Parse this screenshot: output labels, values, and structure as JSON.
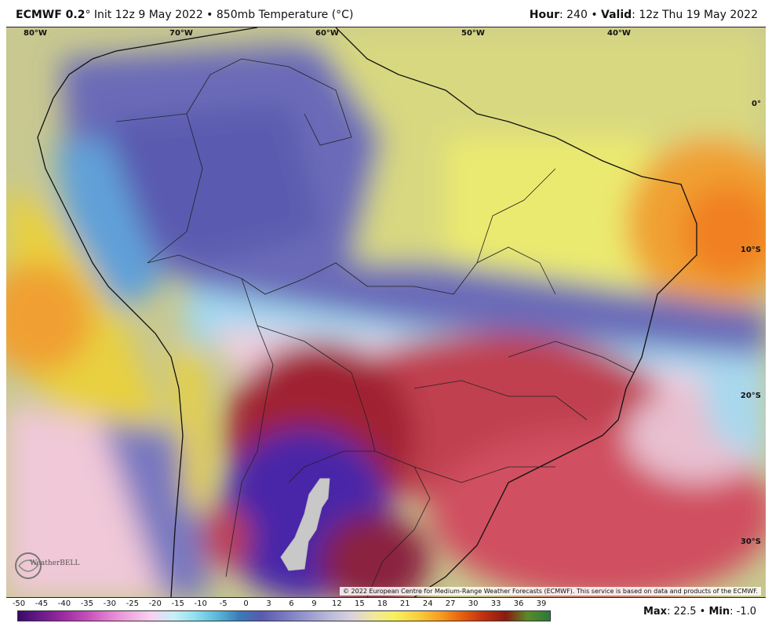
{
  "header": {
    "model": "ECMWF 0.2",
    "deg": "°",
    "init": " Init 12z 9 May 2022 • 850mb Temperature (°C)",
    "hour_label": "Hour",
    "hour_value": ": 240 • ",
    "valid_label": "Valid",
    "valid_value": ": 12z Thu 19 May 2022"
  },
  "map": {
    "lon_labels": [
      "80°W",
      "70°W",
      "60°W",
      "50°W",
      "40°W"
    ],
    "lat_labels": [
      "0°",
      "10°S",
      "20°S",
      "30°S"
    ],
    "credit": "© 2022 European Centre for Medium-Range Weather Forecasts (ECMWF). This service is based on data and products of the ECMWF.",
    "logo": "WeatherBELL"
  },
  "colorbar": {
    "ticks": [
      "-50",
      "-45",
      "-40",
      "-35",
      "-30",
      "-25",
      "-20",
      "-15",
      "-10",
      "-5",
      "0",
      "3",
      "6",
      "9",
      "12",
      "15",
      "18",
      "21",
      "24",
      "27",
      "30",
      "33",
      "36",
      "39"
    ],
    "colors": [
      "#3a0a6a",
      "#6a1a8a",
      "#9a2aa0",
      "#c04ab8",
      "#e07ad0",
      "#f0a8e0",
      "#f8d0f0",
      "#c8f0f8",
      "#90e0f0",
      "#58b8d8",
      "#3a7ab8",
      "#5a5ab0",
      "#7878c0",
      "#9898d0",
      "#b8b8d8",
      "#d8d0e0",
      "#f0e8a0",
      "#f8f060",
      "#f8d040",
      "#f8a020",
      "#e86010",
      "#c03010",
      "#8a1a10",
      "#5a8a2a",
      "#2a7a3a"
    ]
  },
  "stats": {
    "max_label": "Max",
    "max_value": ": 22.5 • ",
    "min_label": "Min",
    "min_value": ": -1.0"
  }
}
